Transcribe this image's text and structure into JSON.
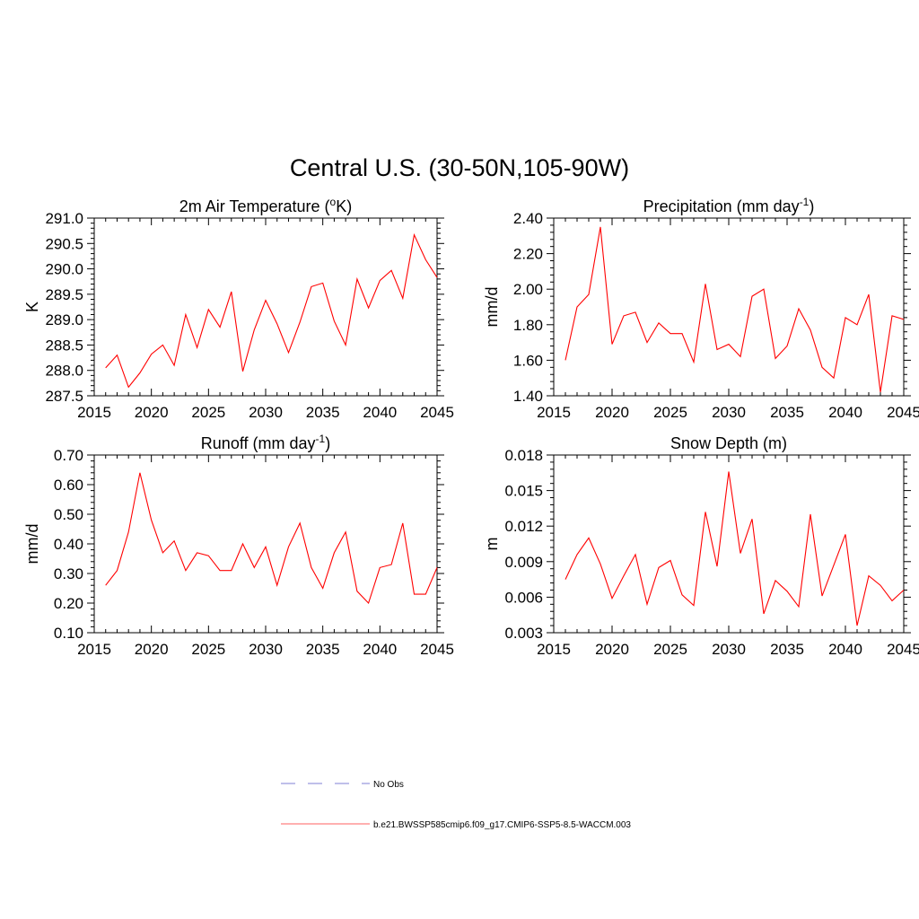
{
  "figure": {
    "title": "Central U.S. (30-50N,105-90W)"
  },
  "legend": [
    {
      "label": "No Obs",
      "color": "#9999dd",
      "dash": "dashed"
    },
    {
      "label": "b.e21.BWSSP585cmip6.f09_g17.CMIP6-SSP5-8.5-WACCM.003",
      "color": "#ff8080",
      "dash": "solid"
    }
  ],
  "chart_data": [
    {
      "type": "line",
      "title": "2m Air Temperature (°K)",
      "title_parts": [
        "2m Air Temperature (",
        "o",
        "K)"
      ],
      "ylabel": "K",
      "xlim": [
        2015,
        2045
      ],
      "ylim": [
        287.5,
        291.0
      ],
      "xticks": [
        "2015",
        "2020",
        "2025",
        "2030",
        "2035",
        "2040",
        "2045"
      ],
      "yticks": [
        "287.5",
        "288.0",
        "288.5",
        "289.0",
        "289.5",
        "290.0",
        "290.5",
        "291.0"
      ],
      "series": [
        {
          "color": "#ff0000",
          "x": [
            2016,
            2017,
            2018,
            2019,
            2020,
            2021,
            2022,
            2023,
            2024,
            2025,
            2026,
            2027,
            2028,
            2029,
            2030,
            2031,
            2032,
            2033,
            2034,
            2035,
            2036,
            2037,
            2038,
            2039,
            2040,
            2041,
            2042,
            2043,
            2044,
            2045
          ],
          "values": [
            288.05,
            288.3,
            287.67,
            287.95,
            288.32,
            288.5,
            288.1,
            289.1,
            288.45,
            289.2,
            288.85,
            289.55,
            287.98,
            288.8,
            289.38,
            288.92,
            288.35,
            288.95,
            289.65,
            289.72,
            288.97,
            288.5,
            289.8,
            289.23,
            289.77,
            289.97,
            289.42,
            290.67,
            290.18,
            289.83
          ]
        }
      ]
    },
    {
      "type": "line",
      "title": "Precipitation (mm day⁻¹)",
      "title_parts": [
        "Precipitation (mm day",
        "-1",
        ")"
      ],
      "ylabel": "mm/d",
      "xlim": [
        2015,
        2045
      ],
      "ylim": [
        1.4,
        2.4
      ],
      "xticks": [
        "2015",
        "2020",
        "2025",
        "2030",
        "2035",
        "2040",
        "2045"
      ],
      "yticks": [
        "1.40",
        "1.60",
        "1.80",
        "2.00",
        "2.20",
        "2.40"
      ],
      "series": [
        {
          "color": "#ff0000",
          "x": [
            2016,
            2017,
            2018,
            2019,
            2020,
            2021,
            2022,
            2023,
            2024,
            2025,
            2026,
            2027,
            2028,
            2029,
            2030,
            2031,
            2032,
            2033,
            2034,
            2035,
            2036,
            2037,
            2038,
            2039,
            2040,
            2041,
            2042,
            2043,
            2044,
            2045
          ],
          "values": [
            1.6,
            1.9,
            1.97,
            2.35,
            1.69,
            1.85,
            1.87,
            1.7,
            1.81,
            1.75,
            1.75,
            1.59,
            2.03,
            1.66,
            1.69,
            1.62,
            1.96,
            2.0,
            1.61,
            1.68,
            1.89,
            1.77,
            1.56,
            1.5,
            1.84,
            1.8,
            1.97,
            1.42,
            1.85,
            1.83
          ]
        }
      ]
    },
    {
      "type": "line",
      "title": "Runoff (mm day⁻¹)",
      "title_parts": [
        "Runoff (mm day",
        "-1",
        ")"
      ],
      "ylabel": "mm/d",
      "xlim": [
        2015,
        2045
      ],
      "ylim": [
        0.1,
        0.7
      ],
      "xticks": [
        "2015",
        "2020",
        "2025",
        "2030",
        "2035",
        "2040",
        "2045"
      ],
      "yticks": [
        "0.10",
        "0.20",
        "0.30",
        "0.40",
        "0.50",
        "0.60",
        "0.70"
      ],
      "series": [
        {
          "color": "#ff0000",
          "x": [
            2016,
            2017,
            2018,
            2019,
            2020,
            2021,
            2022,
            2023,
            2024,
            2025,
            2026,
            2027,
            2028,
            2029,
            2030,
            2031,
            2032,
            2033,
            2034,
            2035,
            2036,
            2037,
            2038,
            2039,
            2040,
            2041,
            2042,
            2043,
            2044,
            2045
          ],
          "values": [
            0.26,
            0.31,
            0.44,
            0.64,
            0.48,
            0.37,
            0.41,
            0.31,
            0.37,
            0.36,
            0.31,
            0.31,
            0.4,
            0.32,
            0.39,
            0.26,
            0.39,
            0.47,
            0.32,
            0.25,
            0.37,
            0.44,
            0.24,
            0.2,
            0.32,
            0.33,
            0.47,
            0.23,
            0.23,
            0.32
          ]
        }
      ]
    },
    {
      "type": "line",
      "title": "Snow Depth (m)",
      "title_parts": [
        "Snow Depth (m)",
        "",
        ""
      ],
      "ylabel": "m",
      "xlim": [
        2015,
        2045
      ],
      "ylim": [
        0.003,
        0.018
      ],
      "xticks": [
        "2015",
        "2020",
        "2025",
        "2030",
        "2035",
        "2040",
        "2045"
      ],
      "yticks": [
        "0.003",
        "0.006",
        "0.009",
        "0.012",
        "0.015",
        "0.018"
      ],
      "series": [
        {
          "color": "#ff0000",
          "x": [
            2016,
            2017,
            2018,
            2019,
            2020,
            2021,
            2022,
            2023,
            2024,
            2025,
            2026,
            2027,
            2028,
            2029,
            2030,
            2031,
            2032,
            2033,
            2034,
            2035,
            2036,
            2037,
            2038,
            2039,
            2040,
            2041,
            2042,
            2043,
            2044,
            2045
          ],
          "values": [
            0.0075,
            0.0096,
            0.011,
            0.0088,
            0.0059,
            0.0078,
            0.0096,
            0.0054,
            0.0085,
            0.0091,
            0.0062,
            0.0053,
            0.0132,
            0.0086,
            0.0166,
            0.0097,
            0.0126,
            0.0046,
            0.0074,
            0.0065,
            0.0052,
            0.013,
            0.0061,
            0.0087,
            0.0113,
            0.0036,
            0.0078,
            0.007,
            0.0057,
            0.0066
          ]
        }
      ]
    }
  ]
}
